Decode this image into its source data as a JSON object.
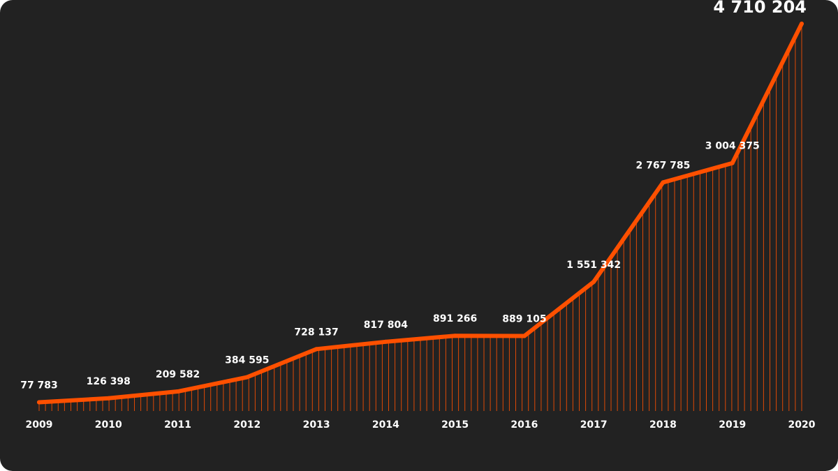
{
  "chart_data": {
    "type": "area",
    "categories": [
      "2009",
      "2010",
      "2011",
      "2012",
      "2013",
      "2014",
      "2015",
      "2016",
      "2017",
      "2018",
      "2019",
      "2020"
    ],
    "values": [
      77783,
      126398,
      209582,
      384595,
      728137,
      817804,
      891266,
      889105,
      1551342,
      2767785,
      3004375,
      4710204
    ],
    "value_labels": [
      "77 783",
      "126 398",
      "209 582",
      "384 595",
      "728 137",
      "817 804",
      "891 266",
      "889 105",
      "1 551 342",
      "2 767 785",
      "3 004 375",
      "4 710 204"
    ],
    "highlight_index": 11,
    "ylim": [
      -200000,
      5000000
    ],
    "grid": false,
    "legend": "none",
    "line_color": "#FF5000",
    "fill_stripe_color": "#FF5000"
  },
  "colors": {
    "background": "#222222",
    "text": "#FFFFFF",
    "accent": "#FF5000"
  }
}
